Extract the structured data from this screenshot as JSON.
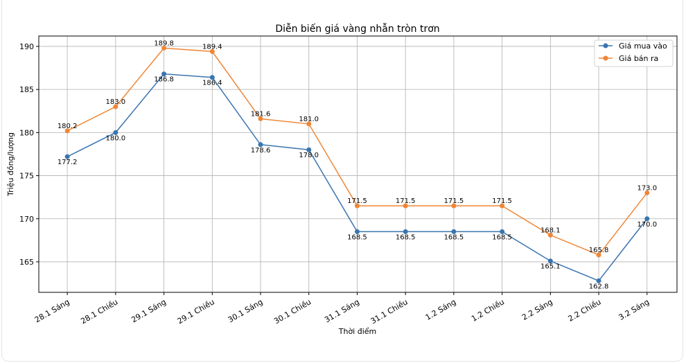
{
  "chart_data": {
    "type": "line",
    "title": "Diễn biến giá vàng nhẫn tròn trơn",
    "xlabel": "Thời điểm",
    "ylabel": "Triệu đồng/lượng",
    "categories": [
      "28.1 Sáng",
      "28.1 Chiều",
      "29.1 Sáng",
      "29.1 Chiều",
      "30.1 Sáng",
      "30.1 Chiều",
      "31.1 Sáng",
      "31.1 Chiều",
      "1.2 Sáng",
      "1.2 Chiều",
      "2.2 Sáng",
      "2.2 Chiều",
      "3.2 Sáng"
    ],
    "series": [
      {
        "name": "Giá mua vào",
        "color": "#3a75af",
        "label_pos": "below",
        "values": [
          177.2,
          180.0,
          186.8,
          186.4,
          178.6,
          178.0,
          168.5,
          168.5,
          168.5,
          168.5,
          165.1,
          162.8,
          170.0
        ]
      },
      {
        "name": "Giá bán ra",
        "color": "#ef8636",
        "label_pos": "above",
        "values": [
          180.2,
          183.0,
          189.8,
          189.4,
          181.6,
          181.0,
          171.5,
          171.5,
          171.5,
          171.5,
          168.1,
          165.8,
          173.0
        ]
      }
    ],
    "yticks": [
      165,
      170,
      175,
      180,
      185,
      190
    ],
    "ylim": [
      161.46,
      191.2
    ],
    "xlim": [
      -0.59,
      12.62
    ],
    "grid": true,
    "legend": "top-right"
  }
}
